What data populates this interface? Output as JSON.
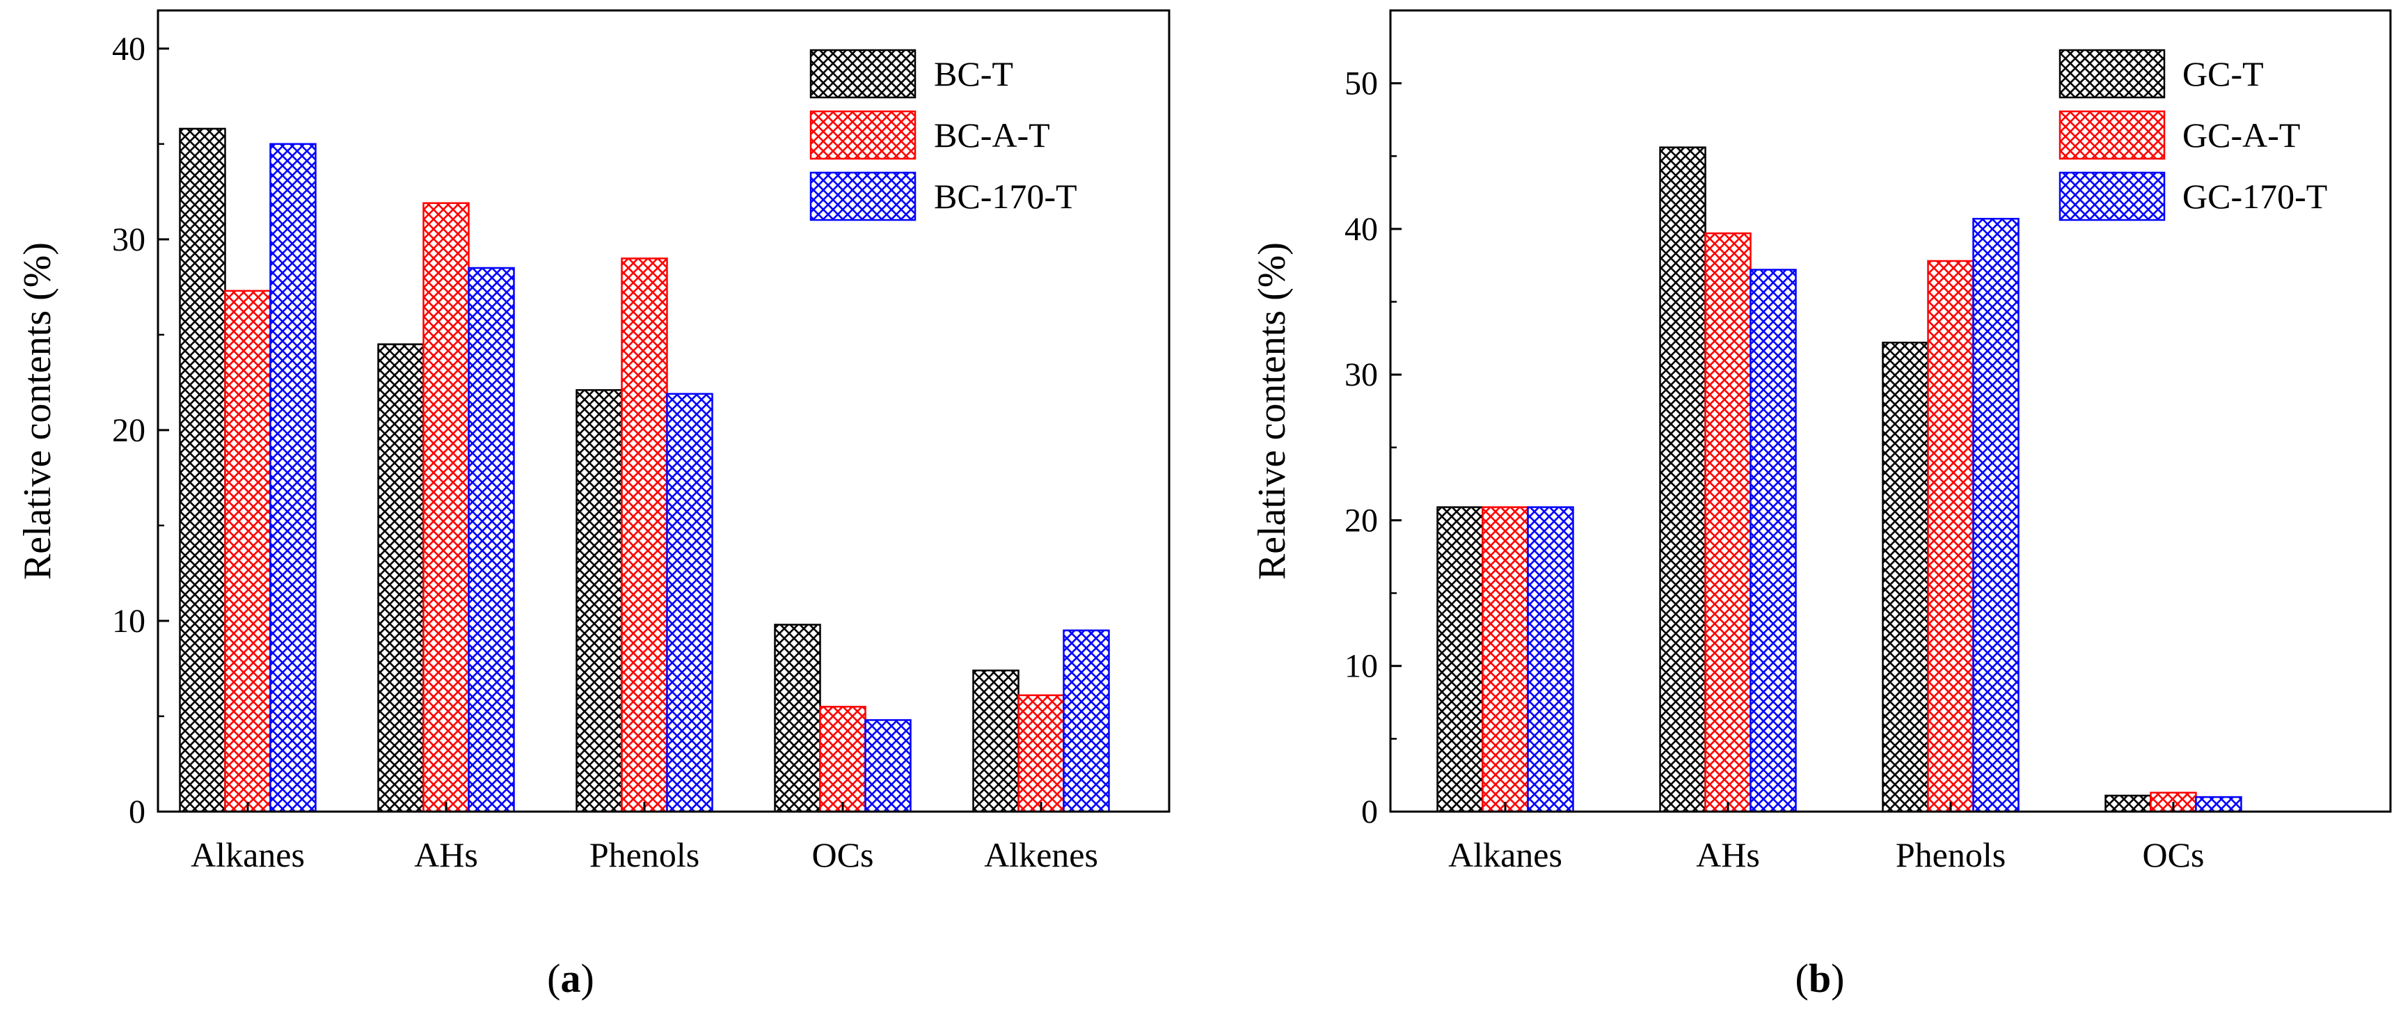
{
  "chart_data": [
    {
      "panel": "a",
      "type": "bar",
      "panel_label_prefix": "(",
      "panel_label_letter": "a",
      "panel_label_suffix": ")",
      "ylabel": "Relative contents (%)",
      "xlabel": "",
      "ylim": [
        0,
        42
      ],
      "yticks": [
        0,
        10,
        20,
        30,
        40
      ],
      "grid": false,
      "legend_position": "top-right",
      "categories": [
        "Alkanes",
        "AHs",
        "Phenols",
        "OCs",
        "Alkenes"
      ],
      "series": [
        {
          "name": "BC-T",
          "color": "#000000",
          "values": [
            35.8,
            24.5,
            22.1,
            9.8,
            7.4
          ]
        },
        {
          "name": "BC-A-T",
          "color": "#ff0000",
          "values": [
            27.3,
            31.9,
            29.0,
            5.5,
            6.1
          ]
        },
        {
          "name": "BC-170-T",
          "color": "#0000ff",
          "values": [
            35.0,
            28.5,
            21.9,
            4.8,
            9.5
          ]
        }
      ]
    },
    {
      "panel": "b",
      "type": "bar",
      "panel_label_prefix": "(",
      "panel_label_letter": "b",
      "panel_label_suffix": ")",
      "ylabel": "Relative contents (%)",
      "xlabel": "",
      "ylim": [
        0,
        55
      ],
      "yticks": [
        0,
        10,
        20,
        30,
        40,
        50
      ],
      "grid": false,
      "legend_position": "top-right",
      "categories": [
        "Alkanes",
        "AHs",
        "Phenols",
        "OCs"
      ],
      "series": [
        {
          "name": "GC-T",
          "color": "#000000",
          "values": [
            20.9,
            45.6,
            32.2,
            1.1
          ]
        },
        {
          "name": "GC-A-T",
          "color": "#ff0000",
          "values": [
            20.9,
            39.7,
            37.8,
            1.3
          ]
        },
        {
          "name": "GC-170-T",
          "color": "#0000ff",
          "values": [
            20.9,
            37.2,
            40.7,
            1.0
          ]
        }
      ]
    }
  ]
}
